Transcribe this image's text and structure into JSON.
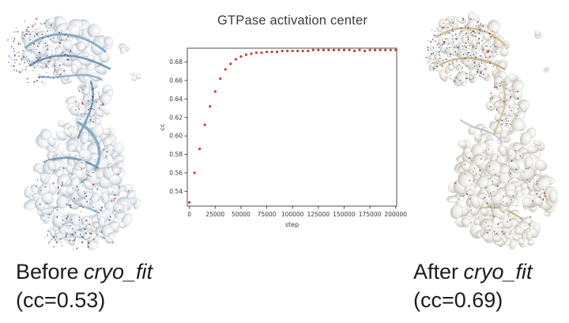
{
  "captions": {
    "before": {
      "prefix": "Before",
      "program": "cryo_fit",
      "cc": "(cc=0.53)"
    },
    "after": {
      "prefix": "After",
      "program": "cryo_fit",
      "cc": "(cc=0.69)"
    }
  },
  "palette": {
    "marker_red": "#cf2e21",
    "density_gray_mid": "#e9ecef",
    "density_gray_dark": "#a8b0ba",
    "density_warm_mid": "#ebe8e2",
    "density_warm_dark": "#b2ada3",
    "ribbon_blue": "#7ea6c4",
    "ribbon_blue_dark": "#5d8bae",
    "ribbon_tan": "#d2bd92",
    "ribbon_tan_dark": "#c3ac7c",
    "stick_dark_blue": "#32406e",
    "atom_red": "#a63226",
    "axis_color": "#4a4d50",
    "tick_text_color": "#38393b"
  },
  "chart_data": {
    "type": "scatter",
    "title": "GTPase activation center",
    "xlabel": "step",
    "ylabel": "cc",
    "xlim": [
      -2000,
      201000
    ],
    "ylim": [
      0.524,
      0.695
    ],
    "xticks": [
      0,
      25000,
      50000,
      75000,
      100000,
      125000,
      150000,
      175000,
      200000
    ],
    "yticks": [
      0.54,
      0.56,
      0.58,
      0.6,
      0.62,
      0.64,
      0.66,
      0.68
    ],
    "grid": false,
    "legend": null,
    "marker_color": "#cf2e21",
    "points": [
      [
        0,
        0.528
      ],
      [
        5000,
        0.56
      ],
      [
        10000,
        0.586
      ],
      [
        15000,
        0.612
      ],
      [
        20000,
        0.632
      ],
      [
        25000,
        0.648
      ],
      [
        30000,
        0.662
      ],
      [
        35000,
        0.672
      ],
      [
        40000,
        0.678
      ],
      [
        45000,
        0.683
      ],
      [
        50000,
        0.686
      ],
      [
        55000,
        0.688
      ],
      [
        60000,
        0.689
      ],
      [
        65000,
        0.69
      ],
      [
        70000,
        0.69
      ],
      [
        75000,
        0.691
      ],
      [
        80000,
        0.691
      ],
      [
        85000,
        0.691
      ],
      [
        90000,
        0.692
      ],
      [
        95000,
        0.692
      ],
      [
        100000,
        0.692
      ],
      [
        105000,
        0.692
      ],
      [
        110000,
        0.692
      ],
      [
        115000,
        0.692
      ],
      [
        120000,
        0.693
      ],
      [
        125000,
        0.693
      ],
      [
        130000,
        0.693
      ],
      [
        135000,
        0.693
      ],
      [
        140000,
        0.693
      ],
      [
        145000,
        0.693
      ],
      [
        150000,
        0.693
      ],
      [
        155000,
        0.693
      ],
      [
        160000,
        0.692
      ],
      [
        165000,
        0.693
      ],
      [
        170000,
        0.692
      ],
      [
        175000,
        0.693
      ],
      [
        180000,
        0.693
      ],
      [
        185000,
        0.693
      ],
      [
        190000,
        0.693
      ],
      [
        195000,
        0.693
      ],
      [
        200000,
        0.693
      ]
    ]
  }
}
